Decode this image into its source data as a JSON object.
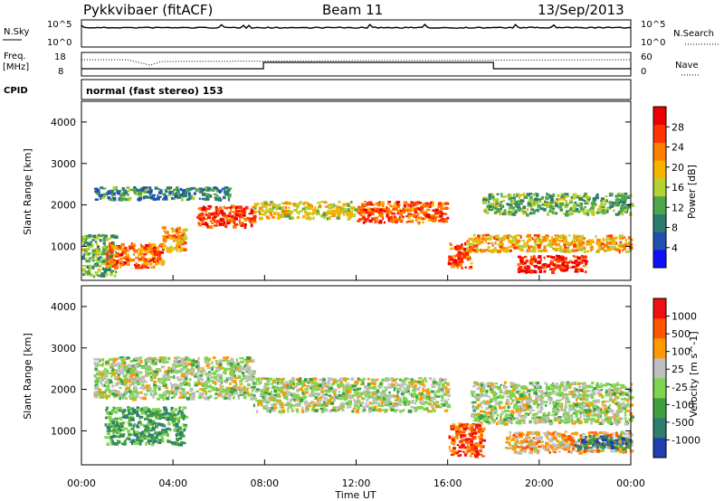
{
  "header": {
    "radar": "Pykkvibaer (fitACF)",
    "beam": "Beam 11",
    "date": "13/Sep/2013"
  },
  "top_panels": {
    "nsky_label": "N.Sky",
    "nsky_ticks": [
      "10^5",
      "10^0"
    ],
    "nsearch_label": "N.Search",
    "nsearch_ticks": [
      "10^5",
      "10^0"
    ],
    "freq_label": "Freq.",
    "freq_unit": "[MHz]",
    "freq_ticks": [
      "18",
      "8"
    ],
    "nave_label": "Nave",
    "nave_ticks": [
      "60",
      "0"
    ],
    "cpid_label": "CPID",
    "cpid_value": "normal (fast stereo) 153"
  },
  "x_axis": {
    "label": "Time UT",
    "ticks": [
      "00:00",
      "04:00",
      "08:00",
      "12:00",
      "16:00",
      "20:00",
      "00:00"
    ]
  },
  "chart_data": [
    {
      "type": "heatmap",
      "title": "",
      "parameter": "Power",
      "xlabel": "Time UT",
      "ylabel": "Slant Range [km]",
      "xlim": [
        0,
        24
      ],
      "ylim": [
        180,
        4500
      ],
      "yticks": [
        "1000",
        "2000",
        "3000",
        "4000"
      ],
      "colorbar": {
        "label": "Power [dB]",
        "ticks": [
          "4",
          "8",
          "12",
          "16",
          "20",
          "24",
          "28"
        ],
        "colors": [
          "#1010ff",
          "#2050b0",
          "#2d7d6e",
          "#4fa64a",
          "#b4d232",
          "#f5b400",
          "#ff8000",
          "#ff3300",
          "#ee0000"
        ]
      },
      "regions": [
        {
          "t": [
            0.0,
            1.5
          ],
          "r": [
            300,
            1300
          ],
          "level": 0.4
        },
        {
          "t": [
            1.0,
            3.5
          ],
          "r": [
            500,
            1100
          ],
          "level": 0.75
        },
        {
          "t": [
            3.5,
            4.5
          ],
          "r": [
            900,
            1500
          ],
          "level": 0.65
        },
        {
          "t": [
            0.5,
            6.5
          ],
          "r": [
            2150,
            2450
          ],
          "level": 0.3
        },
        {
          "t": [
            5.0,
            7.5
          ],
          "r": [
            1500,
            2000
          ],
          "level": 0.85
        },
        {
          "t": [
            7.5,
            12.0
          ],
          "r": [
            1700,
            2100
          ],
          "level": 0.55
        },
        {
          "t": [
            12.0,
            16.0
          ],
          "r": [
            1600,
            2100
          ],
          "level": 0.8
        },
        {
          "t": [
            16.0,
            17.0
          ],
          "r": [
            500,
            1100
          ],
          "level": 0.8
        },
        {
          "t": [
            16.8,
            24.0
          ],
          "r": [
            900,
            1300
          ],
          "level": 0.65
        },
        {
          "t": [
            19.0,
            22.0
          ],
          "r": [
            400,
            800
          ],
          "level": 0.9
        },
        {
          "t": [
            17.5,
            24.0
          ],
          "r": [
            1800,
            2300
          ],
          "level": 0.4
        }
      ]
    },
    {
      "type": "heatmap",
      "title": "",
      "parameter": "Velocity",
      "xlabel": "Time UT",
      "ylabel": "Slant Range [km]",
      "xlim": [
        0,
        24
      ],
      "ylim": [
        180,
        4500
      ],
      "yticks": [
        "1000",
        "2000",
        "3000",
        "4000"
      ],
      "colorbar": {
        "label": "Velocity [m s^-1]",
        "ticks": [
          "1000",
          "500",
          "100",
          "25",
          "-25",
          "-100",
          "-500",
          "-1000"
        ],
        "colors": [
          "#1f3fb0",
          "#2f7d6e",
          "#3fa03f",
          "#7fd44f",
          "#bfbfbf",
          "#ff9900",
          "#ff5500",
          "#ee1010"
        ]
      },
      "regions": [
        {
          "t": [
            0.5,
            7.5
          ],
          "r": [
            1800,
            2800
          ],
          "level": 0.5
        },
        {
          "t": [
            7.5,
            16.0
          ],
          "r": [
            1500,
            2300
          ],
          "level": 0.5
        },
        {
          "t": [
            1.0,
            4.5
          ],
          "r": [
            700,
            1600
          ],
          "level": 0.3
        },
        {
          "t": [
            16.0,
            17.5
          ],
          "r": [
            400,
            1200
          ],
          "level": 0.85
        },
        {
          "t": [
            17.0,
            24.0
          ],
          "r": [
            1200,
            2200
          ],
          "level": 0.5
        },
        {
          "t": [
            18.5,
            24.0
          ],
          "r": [
            500,
            1000
          ],
          "level": 0.65
        },
        {
          "t": [
            21.5,
            24.0
          ],
          "r": [
            600,
            900
          ],
          "level": 0.2
        }
      ]
    }
  ]
}
